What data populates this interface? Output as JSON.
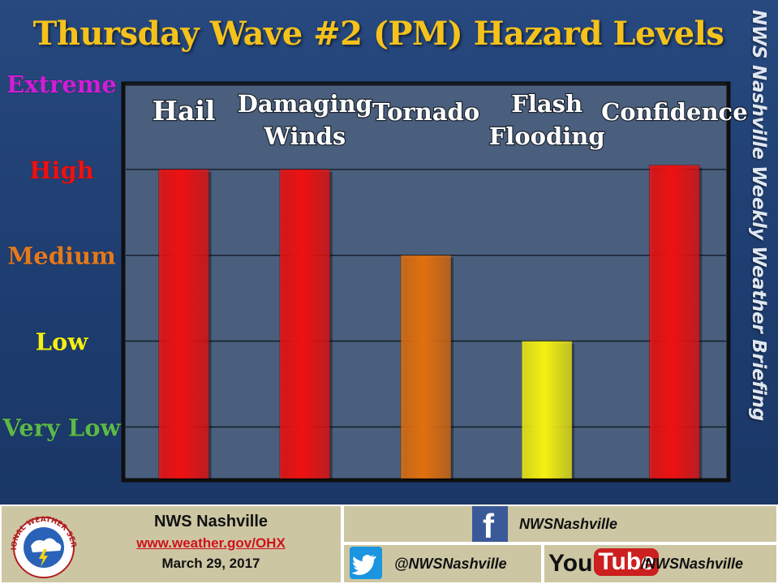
{
  "page": {
    "title": "Thursday Wave #2 (PM) Hazard Levels",
    "side_banner": "NWS Nashville Weekly Weather Briefing"
  },
  "chart_data": {
    "type": "bar",
    "title": "Thursday Wave #2 (PM) Hazard Levels",
    "categories": [
      "Hail",
      "Damaging Winds",
      "Tornado",
      "Flash Flooding",
      "Confidence"
    ],
    "category_lines": [
      [
        "Hail"
      ],
      [
        "Damaging",
        "Winds"
      ],
      [
        "Tornado"
      ],
      [
        "Flash",
        "Flooding"
      ],
      [
        "Confidence"
      ]
    ],
    "values": [
      3,
      3,
      2,
      1,
      3.05
    ],
    "bar_colors": [
      "#ee1111",
      "#ee1111",
      "#e0700f",
      "#f4f013",
      "#ee1111"
    ],
    "levels": [
      {
        "label": "Very Low",
        "value": 0,
        "color": "#5db84a"
      },
      {
        "label": "Low",
        "value": 1,
        "color": "#f4f013"
      },
      {
        "label": "Medium",
        "value": 2,
        "color": "#e27a1f"
      },
      {
        "label": "High",
        "value": 3,
        "color": "#ee1111"
      },
      {
        "label": "Extreme",
        "value": 4,
        "color": "#d01ed6"
      }
    ],
    "ylim": [
      -0.6,
      4
    ],
    "grid": true,
    "colors": {
      "plot_bg": "#4a5f7d",
      "plot_border": "#0f0f0f",
      "grid": "#16202e",
      "label": "#ffffff"
    }
  },
  "footer": {
    "office": "NWS Nashville",
    "url": "www.weather.gov/OHX",
    "date": "March 29, 2017",
    "seal_text": "NATIONAL WEATHER SERVICE",
    "facebook_handle": "NWSNashville",
    "twitter_handle": "@NWSNashville",
    "youtube_you": "You",
    "youtube_tube": "Tube",
    "youtube_handle": "/NWSNashville",
    "icons": {
      "facebook": "facebook-icon",
      "twitter": "twitter-bird-icon",
      "youtube": "youtube-logo"
    },
    "colors": {
      "panel": "#cdc6a3",
      "url": "#d0121b",
      "facebook": "#3b5998",
      "twitter": "#1b95e0",
      "youtube": "#cc1f1f"
    }
  }
}
